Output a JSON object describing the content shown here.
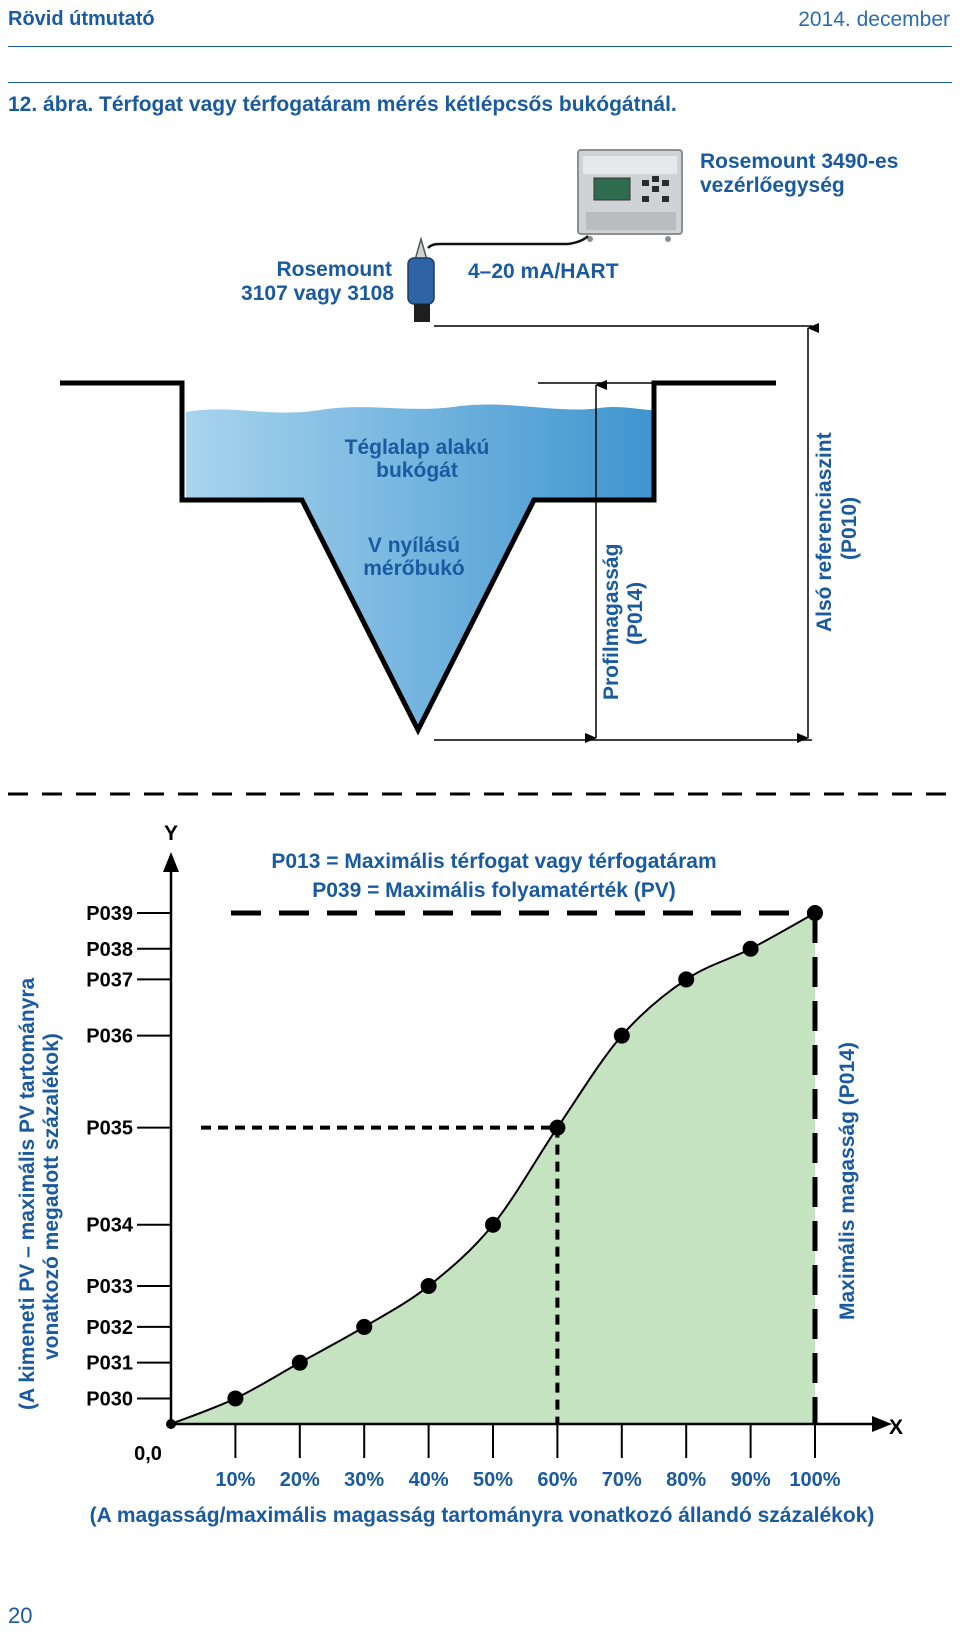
{
  "header": {
    "title": "Rövid útmutató",
    "date": "2014. december"
  },
  "figure": {
    "caption": "12. ábra.  Térfogat vagy térfogatáram mérés kétlépcsős bukógátnál.",
    "controller_label_1": "Rosemount 3490-es",
    "controller_label_2": "vezérlőegység",
    "transmitter_label_1": "Rosemount",
    "transmitter_label_2": "3107 vagy 3108",
    "signal_label": "4–20 mA/HART",
    "rect_weir_1": "Téglalap alakú",
    "rect_weir_2": "bukógát",
    "v_weir_1": "V nyílású",
    "v_weir_2": "mérőbukó",
    "profile_height_1": "Profilmagasság",
    "profile_height_2": "(P014)",
    "bottom_ref_1": "Alsó referenciaszint",
    "bottom_ref_2": "(P010)"
  },
  "chart_data": {
    "type": "line",
    "y_axis_letter": "Y",
    "x_axis_letter": "X",
    "origin_label": "0,0",
    "note_1": "P013 = Maximális térfogat vagy térfogatáram",
    "note_2": "P039 = Maximális folyamatérték (PV)",
    "right_label": "Maximális magasság (P014)",
    "ylabel_1": "(A kimeneti PV – maximális PV tartományra",
    "ylabel_2": "vonatkozó megadott százalékok)",
    "xlabel": "(A magasság/maximális magasság tartományra vonatkozó állandó százalékok)",
    "x_ticks": [
      "10%",
      "20%",
      "30%",
      "40%",
      "50%",
      "60%",
      "70%",
      "80%",
      "90%",
      "100%"
    ],
    "y_params": [
      "P030",
      "P031",
      "P032",
      "P033",
      "P034",
      "P035",
      "P036",
      "P037",
      "P038",
      "P039"
    ],
    "x": [
      0,
      10,
      20,
      30,
      40,
      50,
      60,
      70,
      80,
      90,
      100
    ],
    "y": [
      0,
      5,
      12,
      19,
      27,
      39,
      58,
      76,
      87,
      93,
      100
    ],
    "xlim": [
      0,
      100
    ],
    "ylim": [
      0,
      100
    ],
    "highlight_x": 60,
    "colors": {
      "fill": "#c5e3c0",
      "line": "#000000",
      "label": "#1a5aa0",
      "water_light": "#a8d4ee",
      "water_dark": "#3f95cf"
    }
  }
}
